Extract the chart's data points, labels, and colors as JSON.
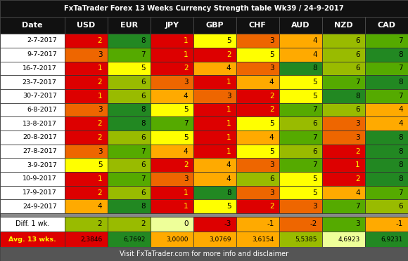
{
  "title": "FxTaTrader Forex 13 Weeks Currency Strength table Wk39 / 24-9-2017",
  "footer": "Visit FxTaTrader.com for more info and disclaimer",
  "columns": [
    "Date",
    "USD",
    "EUR",
    "JPY",
    "GBP",
    "CHF",
    "AUD",
    "NZD",
    "CAD"
  ],
  "rows": [
    {
      "date": "2-7-2017",
      "USD": 2,
      "EUR": 8,
      "JPY": 1,
      "GBP": 5,
      "CHF": 3,
      "AUD": 4,
      "NZD": 6,
      "CAD": 7
    },
    {
      "date": "9-7-2017",
      "USD": 3,
      "EUR": 7,
      "JPY": 1,
      "GBP": 2,
      "CHF": 5,
      "AUD": 4,
      "NZD": 6,
      "CAD": 8
    },
    {
      "date": "16-7-2017",
      "USD": 1,
      "EUR": 5,
      "JPY": 2,
      "GBP": 4,
      "CHF": 3,
      "AUD": 8,
      "NZD": 6,
      "CAD": 7
    },
    {
      "date": "23-7-2017",
      "USD": 2,
      "EUR": 6,
      "JPY": 3,
      "GBP": 1,
      "CHF": 4,
      "AUD": 5,
      "NZD": 7,
      "CAD": 8
    },
    {
      "date": "30-7-2017",
      "USD": 1,
      "EUR": 6,
      "JPY": 4,
      "GBP": 3,
      "CHF": 2,
      "AUD": 5,
      "NZD": 8,
      "CAD": 7
    },
    {
      "date": "6-8-2017",
      "USD": 3,
      "EUR": 8,
      "JPY": 5,
      "GBP": 1,
      "CHF": 2,
      "AUD": 7,
      "NZD": 6,
      "CAD": 4
    },
    {
      "date": "13-8-2017",
      "USD": 2,
      "EUR": 8,
      "JPY": 7,
      "GBP": 1,
      "CHF": 5,
      "AUD": 6,
      "NZD": 3,
      "CAD": 4
    },
    {
      "date": "20-8-2017",
      "USD": 2,
      "EUR": 6,
      "JPY": 5,
      "GBP": 1,
      "CHF": 4,
      "AUD": 7,
      "NZD": 3,
      "CAD": 8
    },
    {
      "date": "27-8-2017",
      "USD": 3,
      "EUR": 7,
      "JPY": 4,
      "GBP": 1,
      "CHF": 5,
      "AUD": 6,
      "NZD": 2,
      "CAD": 8
    },
    {
      "date": "3-9-2017",
      "USD": 5,
      "EUR": 6,
      "JPY": 2,
      "GBP": 4,
      "CHF": 3,
      "AUD": 7,
      "NZD": 1,
      "CAD": 8
    },
    {
      "date": "10-9-2017",
      "USD": 1,
      "EUR": 7,
      "JPY": 3,
      "GBP": 4,
      "CHF": 6,
      "AUD": 5,
      "NZD": 2,
      "CAD": 8
    },
    {
      "date": "17-9-2017",
      "USD": 2,
      "EUR": 6,
      "JPY": 1,
      "GBP": 8,
      "CHF": 3,
      "AUD": 5,
      "NZD": 4,
      "CAD": 7
    },
    {
      "date": "24-9-2017",
      "USD": 4,
      "EUR": 8,
      "JPY": 1,
      "GBP": 5,
      "CHF": 2,
      "AUD": 3,
      "NZD": 7,
      "CAD": 6
    }
  ],
  "diff": {
    "USD": 2,
    "EUR": 2,
    "JPY": 0,
    "GBP": -3,
    "CHF": -1,
    "AUD": -2,
    "NZD": 3,
    "CAD": -1
  },
  "avg": {
    "USD": "2,3846",
    "EUR": "6,7692",
    "JPY": "3,0000",
    "GBP": "3,0769",
    "CHF": "3,6154",
    "AUD": "5,5385",
    "NZD": "4,6923",
    "CAD": "6,9231"
  },
  "color_map": {
    "1": "#dd0000",
    "2": "#dd0000",
    "3": "#ee6600",
    "4": "#ffaa00",
    "5": "#ffff00",
    "6": "#99bb00",
    "7": "#55aa00",
    "8": "#228822"
  },
  "diff_color_map": {
    "-3": "#dd0000",
    "-2": "#ee6600",
    "-1": "#ffaa00",
    "0": "#eeff99",
    "1": "#99bb00",
    "2": "#99bb00",
    "3": "#55aa00"
  },
  "avg_color_map": {
    "USD": "#dd0000",
    "EUR": "#228822",
    "JPY": "#ffaa00",
    "GBP": "#ffaa00",
    "CHF": "#ffaa00",
    "AUD": "#99bb00",
    "NZD": "#eeff99",
    "CAD": "#228822"
  },
  "header_bg": "#111111",
  "header_fg": "#ffffff",
  "title_bg": "#111111",
  "title_fg": "#ffffff",
  "date_bg": "#ffffff",
  "date_fg": "#000000",
  "footer_bg": "#555555",
  "footer_fg": "#ffffff",
  "diff_label_bg": "#ffffff",
  "diff_label_fg": "#000000",
  "avg_label_bg": "#dd0000",
  "avg_label_fg": "#ffff00",
  "separator_bg": "#888888",
  "figwidth": 5.8,
  "figheight": 3.72,
  "dpi": 100
}
